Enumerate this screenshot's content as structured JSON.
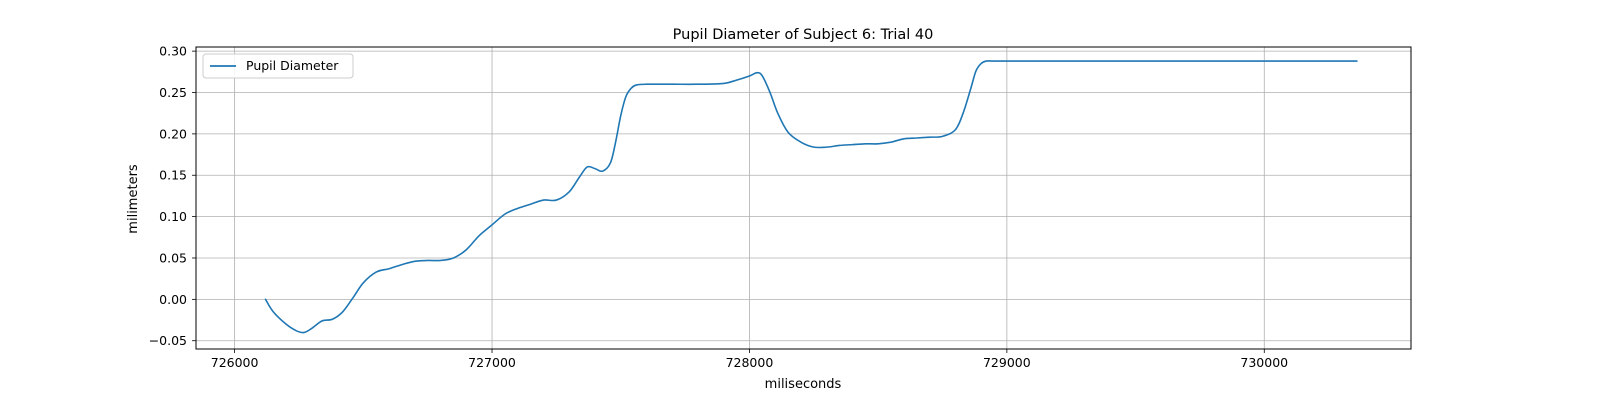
{
  "chart_data": {
    "type": "line",
    "title": "Pupil Diameter of Subject 6: Trial 40",
    "xlabel": "miliseconds",
    "ylabel": "milimeters",
    "xlim": [
      725850,
      730570
    ],
    "ylim": [
      -0.06,
      0.305
    ],
    "xticks": [
      726000,
      727000,
      728000,
      729000,
      730000
    ],
    "xtick_labels": [
      "726000",
      "727000",
      "728000",
      "729000",
      "730000"
    ],
    "yticks": [
      -0.05,
      0.0,
      0.05,
      0.1,
      0.15,
      0.2,
      0.25,
      0.3
    ],
    "ytick_labels": [
      "−0.05",
      "0.00",
      "0.05",
      "0.10",
      "0.15",
      "0.20",
      "0.25",
      "0.30"
    ],
    "grid": true,
    "legend_position": "upper left",
    "colors": {
      "series": "#1f77b4",
      "grid": "#b0b0b0",
      "axes": "#000000"
    },
    "series": [
      {
        "name": "Pupil Diameter",
        "x": [
          726120,
          726150,
          726200,
          726240,
          726270,
          726300,
          726340,
          726380,
          726420,
          726460,
          726500,
          726550,
          726600,
          726650,
          726700,
          726750,
          726800,
          726850,
          726900,
          726950,
          727000,
          727050,
          727100,
          727150,
          727200,
          727250,
          727300,
          727340,
          727370,
          727400,
          727430,
          727460,
          727480,
          727500,
          727520,
          727540,
          727560,
          727600,
          727700,
          727800,
          727900,
          727950,
          728000,
          728030,
          728050,
          728080,
          728110,
          728150,
          728200,
          728250,
          728300,
          728350,
          728400,
          728450,
          728500,
          728550,
          728600,
          728650,
          728700,
          728750,
          728800,
          728830,
          728860,
          728880,
          728900,
          728920,
          728950,
          729000,
          729500,
          730000,
          730360
        ],
        "y": [
          0.0,
          -0.015,
          -0.03,
          -0.038,
          -0.04,
          -0.035,
          -0.026,
          -0.024,
          -0.015,
          0.002,
          0.02,
          0.033,
          0.037,
          0.042,
          0.046,
          0.047,
          0.047,
          0.05,
          0.06,
          0.077,
          0.09,
          0.103,
          0.11,
          0.115,
          0.12,
          0.12,
          0.13,
          0.148,
          0.16,
          0.158,
          0.155,
          0.165,
          0.19,
          0.222,
          0.245,
          0.255,
          0.259,
          0.26,
          0.26,
          0.26,
          0.261,
          0.265,
          0.27,
          0.274,
          0.27,
          0.25,
          0.225,
          0.202,
          0.19,
          0.184,
          0.184,
          0.186,
          0.187,
          0.188,
          0.188,
          0.19,
          0.194,
          0.195,
          0.196,
          0.197,
          0.205,
          0.225,
          0.255,
          0.276,
          0.285,
          0.288,
          0.288,
          0.288,
          0.288,
          0.288,
          0.288
        ]
      }
    ]
  }
}
